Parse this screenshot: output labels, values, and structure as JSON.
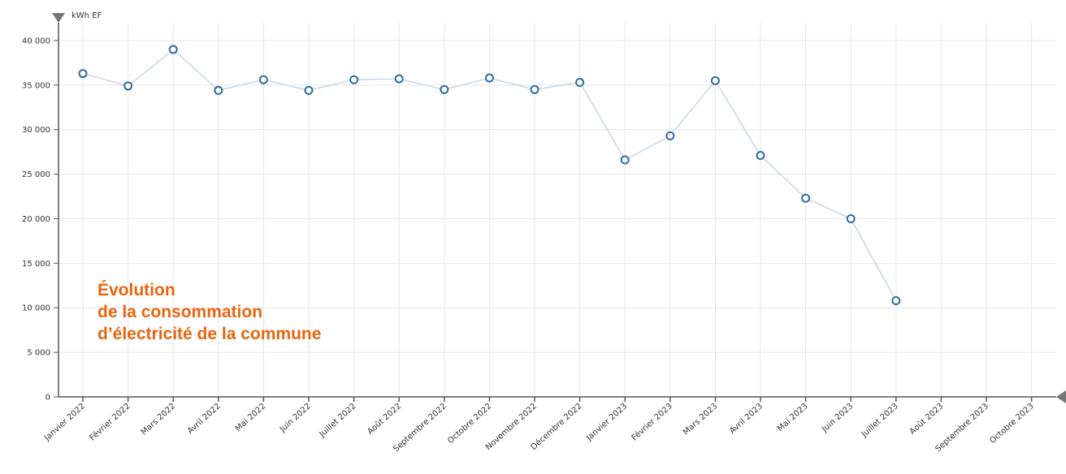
{
  "chart_data": {
    "type": "line",
    "title_lines": [
      "Évolution",
      "de la consommation",
      "d’électricité de la commune"
    ],
    "unit_label": "kWh EF",
    "ylim": [
      0,
      42000
    ],
    "yticks": [
      0,
      5000,
      10000,
      15000,
      20000,
      25000,
      30000,
      35000,
      40000
    ],
    "ytick_labels": [
      "0",
      "5 000",
      "10 000",
      "15 000",
      "20 000",
      "25 000",
      "30 000",
      "35 000",
      "40 000"
    ],
    "categories": [
      "Janvier 2022",
      "Février 2022",
      "Mars 2022",
      "Avril 2022",
      "Mai 2022",
      "Juin 2022",
      "Juillet 2022",
      "Août 2022",
      "Septembre 2022",
      "Octobre 2022",
      "Novembre 2022",
      "Décembre 2022",
      "Janvier 2023",
      "Février 2023",
      "Mars 2023",
      "Avril 2023",
      "Mai 2023",
      "Juin 2023",
      "Juillet 2023",
      "Août 2023",
      "Septembre 2023",
      "Octobre 2023"
    ],
    "series": [
      {
        "values": [
          36300,
          34900,
          39000,
          34400,
          35600,
          34400,
          35600,
          35700,
          34500,
          35800,
          34500,
          35300,
          26600,
          29300,
          35500,
          27100,
          22300,
          20000,
          10800,
          null,
          null,
          null
        ]
      }
    ],
    "grid": true,
    "colors": {
      "line": "#c9d6e3",
      "marker": "#2e6da4",
      "grid": "#e6e6e6",
      "axis": "#555555",
      "title": "#e8650f"
    }
  }
}
